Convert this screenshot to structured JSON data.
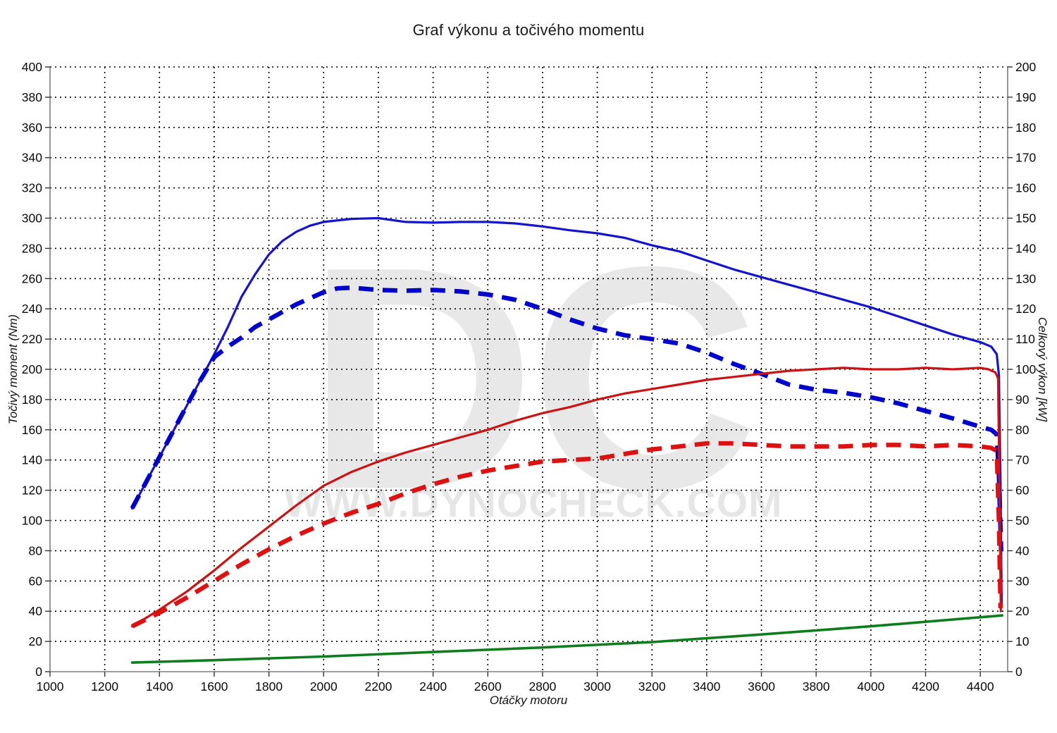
{
  "title": "Graf výkonu a točivého momentu",
  "watermark": {
    "initials": "DC",
    "url_text": "WWW.DYNOCHECK.COM",
    "color": "#e8e8e8"
  },
  "colors": {
    "torque_tuned": "#1414cc",
    "torque_stock": "#0000cd",
    "power_tuned": "#cc1212",
    "power_stock": "#dd1111",
    "baseline": "#0e7d1e",
    "grid": "#000000",
    "axis": "#7d7d7d"
  },
  "chart_data": {
    "type": "line",
    "title": "Graf výkonu a točivého momentu",
    "x_axis": {
      "label": "Otáčky motoru",
      "min": 1000,
      "max": 4500,
      "tick_start": 1000,
      "tick_end": 4400,
      "tick_step": 200
    },
    "y_left": {
      "label": "Točivý moment (Nm)",
      "min": 0,
      "max": 400,
      "tick_step": 20
    },
    "y_right": {
      "label": "Celkový výkon [kW]",
      "min": 0,
      "max": 200,
      "tick_step": 10
    },
    "grid": {
      "style": "dotted",
      "h_step_left_units": 20,
      "v_step_rpm": 200
    },
    "legend": "none",
    "series": [
      {
        "name": "torque-tuned",
        "axis": "left",
        "style": "solid",
        "width": 3.2,
        "color_key": "torque_tuned",
        "points": [
          [
            1300,
            108
          ],
          [
            1350,
            125
          ],
          [
            1400,
            142
          ],
          [
            1450,
            159
          ],
          [
            1500,
            176
          ],
          [
            1550,
            193
          ],
          [
            1600,
            210
          ],
          [
            1650,
            228
          ],
          [
            1700,
            248
          ],
          [
            1750,
            263
          ],
          [
            1800,
            276
          ],
          [
            1850,
            285
          ],
          [
            1900,
            291
          ],
          [
            1950,
            295
          ],
          [
            2000,
            297.5
          ],
          [
            2100,
            299.5
          ],
          [
            2200,
            300
          ],
          [
            2300,
            297.5
          ],
          [
            2400,
            297
          ],
          [
            2500,
            297.5
          ],
          [
            2600,
            297.5
          ],
          [
            2700,
            296.5
          ],
          [
            2800,
            294.5
          ],
          [
            2900,
            292
          ],
          [
            3000,
            290
          ],
          [
            3100,
            287
          ],
          [
            3200,
            282
          ],
          [
            3300,
            278
          ],
          [
            3400,
            272
          ],
          [
            3500,
            266
          ],
          [
            3600,
            261
          ],
          [
            3700,
            256
          ],
          [
            3800,
            251
          ],
          [
            3900,
            246
          ],
          [
            4000,
            241
          ],
          [
            4100,
            235
          ],
          [
            4200,
            229
          ],
          [
            4300,
            223
          ],
          [
            4400,
            218
          ],
          [
            4440,
            215
          ],
          [
            4460,
            210
          ],
          [
            4468,
            196
          ],
          [
            4474,
            120
          ],
          [
            4478,
            45
          ]
        ]
      },
      {
        "name": "torque-stock",
        "axis": "left",
        "style": "dashed",
        "width": 6.4,
        "color_key": "torque_stock",
        "points": [
          [
            1300,
            108
          ],
          [
            1350,
            125
          ],
          [
            1400,
            142
          ],
          [
            1450,
            159
          ],
          [
            1500,
            176
          ],
          [
            1550,
            193
          ],
          [
            1600,
            208
          ],
          [
            1650,
            215
          ],
          [
            1700,
            221
          ],
          [
            1750,
            228
          ],
          [
            1800,
            233
          ],
          [
            1850,
            238
          ],
          [
            1900,
            243
          ],
          [
            1950,
            247
          ],
          [
            2000,
            251
          ],
          [
            2050,
            253.5
          ],
          [
            2100,
            254
          ],
          [
            2200,
            252.5
          ],
          [
            2300,
            252
          ],
          [
            2400,
            252.5
          ],
          [
            2500,
            251.5
          ],
          [
            2600,
            249.5
          ],
          [
            2700,
            246
          ],
          [
            2800,
            240
          ],
          [
            2900,
            233
          ],
          [
            3000,
            227
          ],
          [
            3100,
            222.5
          ],
          [
            3200,
            220
          ],
          [
            3300,
            217
          ],
          [
            3400,
            211
          ],
          [
            3500,
            203.5
          ],
          [
            3600,
            197
          ],
          [
            3700,
            190
          ],
          [
            3800,
            186.5
          ],
          [
            3900,
            184.5
          ],
          [
            4000,
            181.5
          ],
          [
            4100,
            177.5
          ],
          [
            4200,
            172.5
          ],
          [
            4300,
            167.5
          ],
          [
            4400,
            162
          ],
          [
            4440,
            160
          ],
          [
            4460,
            157
          ],
          [
            4468,
            130
          ],
          [
            4476,
            80
          ]
        ]
      },
      {
        "name": "power-tuned",
        "axis": "right",
        "style": "solid",
        "width": 3.2,
        "color_key": "power_tuned",
        "points": [
          [
            1300,
            15
          ],
          [
            1400,
            20.5
          ],
          [
            1500,
            26.5
          ],
          [
            1600,
            33.5
          ],
          [
            1700,
            41
          ],
          [
            1800,
            48
          ],
          [
            1900,
            55
          ],
          [
            2000,
            61.5
          ],
          [
            2100,
            66
          ],
          [
            2200,
            69.5
          ],
          [
            2300,
            72.5
          ],
          [
            2400,
            75
          ],
          [
            2500,
            77.5
          ],
          [
            2600,
            80
          ],
          [
            2700,
            83
          ],
          [
            2800,
            85.5
          ],
          [
            2900,
            87.5
          ],
          [
            3000,
            90
          ],
          [
            3100,
            92
          ],
          [
            3200,
            93.5
          ],
          [
            3300,
            95
          ],
          [
            3400,
            96.5
          ],
          [
            3500,
            97.5
          ],
          [
            3600,
            98.5
          ],
          [
            3700,
            99.5
          ],
          [
            3800,
            100
          ],
          [
            3900,
            100.5
          ],
          [
            4000,
            100
          ],
          [
            4100,
            100
          ],
          [
            4200,
            100.5
          ],
          [
            4300,
            100
          ],
          [
            4400,
            100.5
          ],
          [
            4430,
            100
          ],
          [
            4455,
            99
          ],
          [
            4465,
            97
          ],
          [
            4470,
            60
          ],
          [
            4475,
            20
          ]
        ]
      },
      {
        "name": "power-stock",
        "axis": "right",
        "style": "dashed",
        "width": 6.4,
        "color_key": "power_stock",
        "points": [
          [
            1300,
            15
          ],
          [
            1400,
            19.5
          ],
          [
            1500,
            24.5
          ],
          [
            1600,
            30
          ],
          [
            1700,
            35.5
          ],
          [
            1800,
            40.5
          ],
          [
            1900,
            45
          ],
          [
            2000,
            49
          ],
          [
            2100,
            52.5
          ],
          [
            2200,
            55.5
          ],
          [
            2300,
            59
          ],
          [
            2400,
            62
          ],
          [
            2500,
            64.5
          ],
          [
            2600,
            66.5
          ],
          [
            2700,
            68
          ],
          [
            2800,
            69.5
          ],
          [
            2900,
            70
          ],
          [
            3000,
            70.5
          ],
          [
            3100,
            72
          ],
          [
            3200,
            73.5
          ],
          [
            3300,
            74.5
          ],
          [
            3400,
            75.5
          ],
          [
            3500,
            75.5
          ],
          [
            3600,
            75
          ],
          [
            3700,
            74.5
          ],
          [
            3800,
            74.5
          ],
          [
            3900,
            74.5
          ],
          [
            4000,
            75
          ],
          [
            4100,
            75
          ],
          [
            4200,
            74.5
          ],
          [
            4300,
            75
          ],
          [
            4400,
            74.5
          ],
          [
            4440,
            74
          ],
          [
            4460,
            73
          ],
          [
            4468,
            50
          ],
          [
            4474,
            21
          ]
        ]
      },
      {
        "name": "baseline",
        "axis": "right",
        "style": "solid",
        "width": 3.6,
        "color_key": "baseline",
        "points": [
          [
            1300,
            3
          ],
          [
            1600,
            3.8
          ],
          [
            2000,
            5
          ],
          [
            2400,
            6.5
          ],
          [
            2800,
            8
          ],
          [
            3200,
            9.8
          ],
          [
            3600,
            12.3
          ],
          [
            4000,
            15
          ],
          [
            4200,
            16.5
          ],
          [
            4480,
            18.6
          ]
        ]
      }
    ]
  }
}
